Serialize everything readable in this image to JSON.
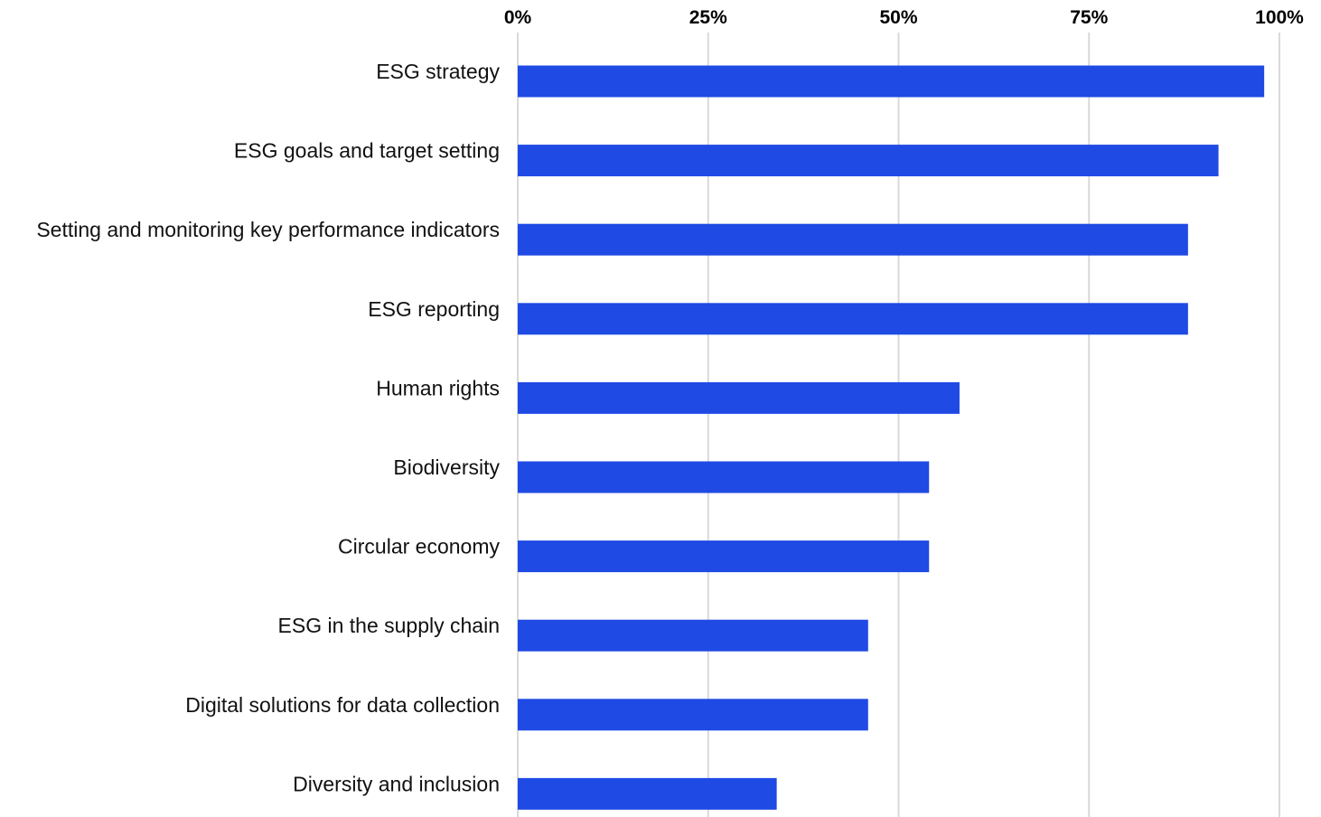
{
  "chart_data": {
    "type": "bar",
    "orientation": "horizontal",
    "categories": [
      "ESG strategy",
      "ESG goals and target setting",
      "Setting and monitoring key performance indicators",
      "ESG reporting",
      "Human rights",
      "Biodiversity",
      "Circular economy",
      "ESG in the supply chain",
      "Digital solutions for data collection",
      "Diversity and inclusion"
    ],
    "values": [
      98,
      92,
      88,
      88,
      58,
      54,
      54,
      46,
      46,
      34
    ],
    "xlim": [
      0,
      100
    ],
    "x_ticks": [
      0,
      25,
      50,
      75,
      100
    ],
    "x_tick_labels": [
      "0%",
      "25%",
      "50%",
      "75%",
      "100%"
    ],
    "x_axis_position": "top",
    "grid": true,
    "bar_color": "#1f4ae4",
    "grid_color": "#d9d9d9",
    "title": "",
    "xlabel": "",
    "ylabel": ""
  }
}
